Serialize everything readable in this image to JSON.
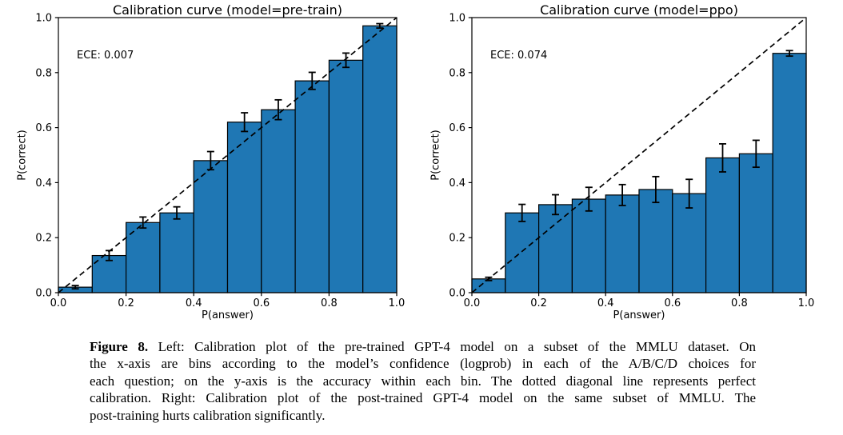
{
  "caption": {
    "figure_label": "Figure 8.",
    "lines": [
      "Left: Calibration plot of the pre-trained GPT-4 model on a subset of the MMLU dataset. On",
      "the x-axis are bins according to the model’s confidence (logprob) in each of the A/B/C/D choices for",
      "each question; on the y-axis is the accuracy within each bin. The dotted diagonal line represents perfect",
      "calibration. Right: Calibration plot of the post-trained GPT-4 model on the same subset of MMLU. The",
      "post-training hurts calibration significantly."
    ]
  },
  "chart_data": [
    {
      "type": "bar",
      "title": "Calibration curve (model=pre-train)",
      "annotation": {
        "text": "ECE: 0.007",
        "x": 0.055,
        "y": 0.845
      },
      "xlabel": "P(answer)",
      "ylabel": "P(correct)",
      "xlim": [
        0.0,
        1.0
      ],
      "ylim": [
        0.0,
        1.0
      ],
      "bin_edges": [
        0.0,
        0.1,
        0.2,
        0.3,
        0.4,
        0.5,
        0.6,
        0.7,
        0.8,
        0.9,
        1.0
      ],
      "bin_centers": [
        0.05,
        0.15,
        0.25,
        0.35,
        0.45,
        0.55,
        0.65,
        0.75,
        0.85,
        0.95
      ],
      "values": [
        0.02,
        0.135,
        0.255,
        0.29,
        0.48,
        0.62,
        0.665,
        0.77,
        0.845,
        0.97
      ],
      "error_bars": [
        0.006,
        0.018,
        0.02,
        0.022,
        0.033,
        0.034,
        0.036,
        0.031,
        0.026,
        0.008
      ],
      "xticks": [
        "0.0",
        "0.2",
        "0.4",
        "0.6",
        "0.8",
        "1.0"
      ],
      "yticks": [
        "0.0",
        "0.2",
        "0.4",
        "0.6",
        "0.8",
        "1.0"
      ],
      "bar_color": "#1f77b4",
      "bar_edge_color": "#000000",
      "diagonal_line": {
        "style": "dashed",
        "from": [
          0,
          0
        ],
        "to": [
          1,
          1
        ],
        "color": "#000000",
        "meaning": "perfect calibration"
      },
      "grid": false,
      "legend": null
    },
    {
      "type": "bar",
      "title": "Calibration curve (model=ppo)",
      "annotation": {
        "text": "ECE: 0.074",
        "x": 0.055,
        "y": 0.845
      },
      "xlabel": "P(answer)",
      "ylabel": "P(correct)",
      "xlim": [
        0.0,
        1.0
      ],
      "ylim": [
        0.0,
        1.0
      ],
      "bin_edges": [
        0.0,
        0.1,
        0.2,
        0.3,
        0.4,
        0.5,
        0.6,
        0.7,
        0.8,
        0.9,
        1.0
      ],
      "bin_centers": [
        0.05,
        0.15,
        0.25,
        0.35,
        0.45,
        0.55,
        0.65,
        0.75,
        0.85,
        0.95
      ],
      "values": [
        0.05,
        0.29,
        0.32,
        0.34,
        0.355,
        0.375,
        0.36,
        0.49,
        0.505,
        0.87
      ],
      "error_bars": [
        0.006,
        0.031,
        0.036,
        0.043,
        0.038,
        0.047,
        0.052,
        0.051,
        0.049,
        0.01
      ],
      "xticks": [
        "0.0",
        "0.2",
        "0.4",
        "0.6",
        "0.8",
        "1.0"
      ],
      "yticks": [
        "0.0",
        "0.2",
        "0.4",
        "0.6",
        "0.8",
        "1.0"
      ],
      "bar_color": "#1f77b4",
      "bar_edge_color": "#000000",
      "diagonal_line": {
        "style": "dashed",
        "from": [
          0,
          0
        ],
        "to": [
          1,
          1
        ],
        "color": "#000000",
        "meaning": "perfect calibration"
      },
      "grid": false,
      "legend": null
    }
  ]
}
